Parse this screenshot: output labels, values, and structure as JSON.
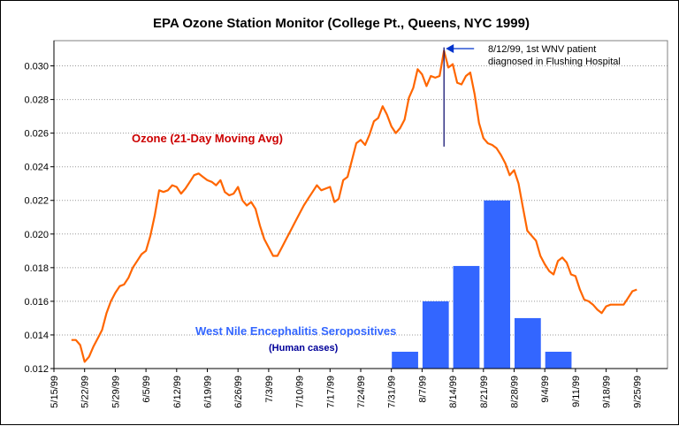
{
  "chart_data": {
    "type": "line+bar",
    "title": "EPA Ozone Station Monitor (College Pt., Queens, NYC 1999)",
    "x_ticks": [
      "5/15/99",
      "5/22/99",
      "5/29/99",
      "6/5/99",
      "6/12/99",
      "6/19/99",
      "6/26/99",
      "7/3/99",
      "7/10/99",
      "7/17/99",
      "7/24/99",
      "7/31/99",
      "8/7/99",
      "8/14/99",
      "8/21/99",
      "8/28/99",
      "9/4/99",
      "9/11/99",
      "9/18/99",
      "9/25/99"
    ],
    "y_ticks": [
      "0.012",
      "0.014",
      "0.016",
      "0.018",
      "0.020",
      "0.022",
      "0.024",
      "0.026",
      "0.028",
      "0.030"
    ],
    "ylim": [
      0.012,
      0.0315
    ],
    "xlim": [
      "5/15/99",
      "10/2/99"
    ],
    "grid": "horizontal dotted",
    "series": [
      {
        "name": "Ozone (21-Day Moving Avg)",
        "type": "line",
        "color": "#ff6600",
        "points": [
          [
            "5/19/99",
            0.0137
          ],
          [
            "5/20/99",
            0.0137
          ],
          [
            "5/21/99",
            0.0134
          ],
          [
            "5/22/99",
            0.0124
          ],
          [
            "5/23/99",
            0.0127
          ],
          [
            "5/24/99",
            0.0133
          ],
          [
            "5/25/99",
            0.0138
          ],
          [
            "5/26/99",
            0.0143
          ],
          [
            "5/27/99",
            0.0153
          ],
          [
            "5/28/99",
            0.016
          ],
          [
            "5/29/99",
            0.0165
          ],
          [
            "5/30/99",
            0.0169
          ],
          [
            "5/31/99",
            0.017
          ],
          [
            "6/1/99",
            0.0174
          ],
          [
            "6/2/99",
            0.018
          ],
          [
            "6/3/99",
            0.0184
          ],
          [
            "6/4/99",
            0.0188
          ],
          [
            "6/5/99",
            0.019
          ],
          [
            "6/6/99",
            0.0199
          ],
          [
            "6/7/99",
            0.0211
          ],
          [
            "6/8/99",
            0.0226
          ],
          [
            "6/9/99",
            0.0225
          ],
          [
            "6/10/99",
            0.0226
          ],
          [
            "6/11/99",
            0.0229
          ],
          [
            "6/12/99",
            0.0228
          ],
          [
            "6/13/99",
            0.0224
          ],
          [
            "6/14/99",
            0.0227
          ],
          [
            "6/15/99",
            0.0231
          ],
          [
            "6/16/99",
            0.0235
          ],
          [
            "6/17/99",
            0.0236
          ],
          [
            "6/18/99",
            0.0234
          ],
          [
            "6/19/99",
            0.0232
          ],
          [
            "6/20/99",
            0.0231
          ],
          [
            "6/21/99",
            0.0229
          ],
          [
            "6/22/99",
            0.0232
          ],
          [
            "6/23/99",
            0.0225
          ],
          [
            "6/24/99",
            0.0223
          ],
          [
            "6/25/99",
            0.0224
          ],
          [
            "6/26/99",
            0.0228
          ],
          [
            "6/27/99",
            0.022
          ],
          [
            "6/28/99",
            0.0217
          ],
          [
            "6/29/99",
            0.0219
          ],
          [
            "6/30/99",
            0.0215
          ],
          [
            "7/1/99",
            0.0205
          ],
          [
            "7/2/99",
            0.0197
          ],
          [
            "7/3/99",
            0.0192
          ],
          [
            "7/4/99",
            0.0187
          ],
          [
            "7/5/99",
            0.0187
          ],
          [
            "7/6/99",
            0.0192
          ],
          [
            "7/7/99",
            0.0197
          ],
          [
            "7/8/99",
            0.0202
          ],
          [
            "7/9/99",
            0.0207
          ],
          [
            "7/10/99",
            0.0212
          ],
          [
            "7/11/99",
            0.0217
          ],
          [
            "7/12/99",
            0.0221
          ],
          [
            "7/13/99",
            0.0225
          ],
          [
            "7/14/99",
            0.0229
          ],
          [
            "7/15/99",
            0.0226
          ],
          [
            "7/16/99",
            0.0227
          ],
          [
            "7/17/99",
            0.0228
          ],
          [
            "7/18/99",
            0.0219
          ],
          [
            "7/19/99",
            0.0221
          ],
          [
            "7/20/99",
            0.0232
          ],
          [
            "7/21/99",
            0.0234
          ],
          [
            "7/22/99",
            0.0244
          ],
          [
            "7/23/99",
            0.0254
          ],
          [
            "7/24/99",
            0.0256
          ],
          [
            "7/25/99",
            0.0253
          ],
          [
            "7/26/99",
            0.0259
          ],
          [
            "7/27/99",
            0.0267
          ],
          [
            "7/28/99",
            0.0269
          ],
          [
            "7/29/99",
            0.0276
          ],
          [
            "7/30/99",
            0.0271
          ],
          [
            "7/31/99",
            0.0264
          ],
          [
            "8/1/99",
            0.026
          ],
          [
            "8/2/99",
            0.0263
          ],
          [
            "8/3/99",
            0.0268
          ],
          [
            "8/4/99",
            0.0281
          ],
          [
            "8/5/99",
            0.0287
          ],
          [
            "8/6/99",
            0.0298
          ],
          [
            "8/7/99",
            0.0295
          ],
          [
            "8/8/99",
            0.0288
          ],
          [
            "8/9/99",
            0.0294
          ],
          [
            "8/10/99",
            0.0293
          ],
          [
            "8/11/99",
            0.0294
          ],
          [
            "8/12/99",
            0.0309
          ],
          [
            "8/13/99",
            0.0299
          ],
          [
            "8/14/99",
            0.0301
          ],
          [
            "8/15/99",
            0.029
          ],
          [
            "8/16/99",
            0.0289
          ],
          [
            "8/17/99",
            0.0294
          ],
          [
            "8/18/99",
            0.0296
          ],
          [
            "8/19/99",
            0.0283
          ],
          [
            "8/20/99",
            0.0266
          ],
          [
            "8/21/99",
            0.0257
          ],
          [
            "8/22/99",
            0.0254
          ],
          [
            "8/23/99",
            0.0253
          ],
          [
            "8/24/99",
            0.0251
          ],
          [
            "8/25/99",
            0.0247
          ],
          [
            "8/26/99",
            0.0242
          ],
          [
            "8/27/99",
            0.0235
          ],
          [
            "8/28/99",
            0.0238
          ],
          [
            "8/29/99",
            0.023
          ],
          [
            "8/30/99",
            0.0216
          ],
          [
            "8/31/99",
            0.0202
          ],
          [
            "9/1/99",
            0.0199
          ],
          [
            "9/2/99",
            0.0196
          ],
          [
            "9/3/99",
            0.0187
          ],
          [
            "9/4/99",
            0.0182
          ],
          [
            "9/5/99",
            0.0178
          ],
          [
            "9/6/99",
            0.0176
          ],
          [
            "9/7/99",
            0.0184
          ],
          [
            "9/8/99",
            0.0186
          ],
          [
            "9/9/99",
            0.0183
          ],
          [
            "9/10/99",
            0.0176
          ],
          [
            "9/11/99",
            0.0175
          ],
          [
            "9/12/99",
            0.0167
          ],
          [
            "9/13/99",
            0.0161
          ],
          [
            "9/14/99",
            0.016
          ],
          [
            "9/15/99",
            0.0158
          ],
          [
            "9/16/99",
            0.0155
          ],
          [
            "9/17/99",
            0.0153
          ],
          [
            "9/18/99",
            0.0157
          ],
          [
            "9/19/99",
            0.0158
          ],
          [
            "9/20/99",
            0.0158
          ],
          [
            "9/21/99",
            0.0158
          ],
          [
            "9/22/99",
            0.0158
          ],
          [
            "9/23/99",
            0.0162
          ],
          [
            "9/24/99",
            0.0166
          ],
          [
            "9/25/99",
            0.0167
          ]
        ]
      },
      {
        "name": "West Nile Encephalitis Seropositives",
        "type": "bar",
        "color": "#3366ff",
        "bars": [
          {
            "start": "7/31/99",
            "end": "8/6/99",
            "value": 0.013
          },
          {
            "start": "8/7/99",
            "end": "8/13/99",
            "value": 0.016
          },
          {
            "start": "8/14/99",
            "end": "8/20/99",
            "value": 0.0181
          },
          {
            "start": "8/21/99",
            "end": "8/27/99",
            "value": 0.022
          },
          {
            "start": "8/28/99",
            "end": "9/3/99",
            "value": 0.015
          },
          {
            "start": "9/4/99",
            "end": "9/10/99",
            "value": 0.013
          }
        ]
      }
    ],
    "annotations": {
      "ozone_label": "Ozone (21-Day Moving Avg)",
      "wnv_label": "West Nile Encephalitis Seropositives",
      "wnv_sublabel": "(Human cases)",
      "event_line_1": "8/12/99, 1st WNV patient",
      "event_line_2": "diagnosed in Flushing Hospital",
      "event_date": "8/12/99",
      "event_line_range": [
        0.0252,
        0.0311
      ]
    },
    "colors": {
      "ozone": "#ff6600",
      "bars": "#3366ff",
      "ozone_label": "#cc0000",
      "wnv_label": "#3366ff",
      "wnv_sublabel": "#000099",
      "event_line": "#000066"
    }
  }
}
